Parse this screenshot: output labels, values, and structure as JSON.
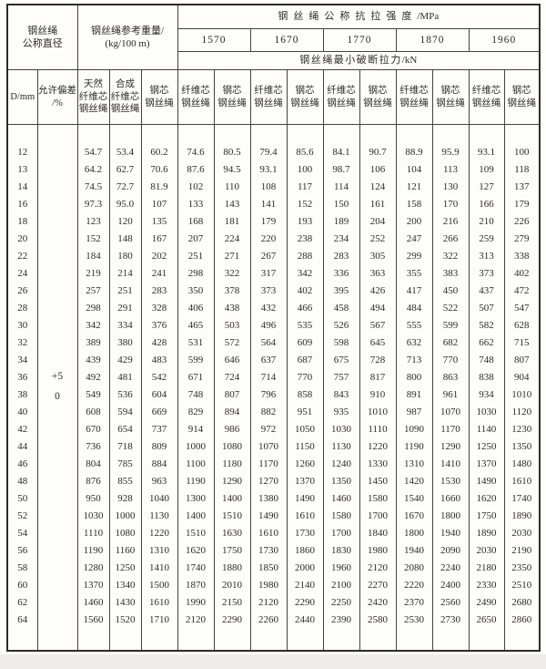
{
  "table": {
    "header": {
      "diameter_title_line1": "钢丝绳",
      "diameter_title_line2": "公称直径",
      "weight_title_line1": "钢丝绳参考重量/",
      "weight_title_line2": "(kg/100 m)",
      "strength_title_cn": "钢丝绳公称抗拉强度",
      "strength_title_unit": "/MPa",
      "strength_grades": [
        "1570",
        "1670",
        "1770",
        "1870",
        "1960"
      ],
      "breaking_force_cn": "钢丝绳最小破断拉力",
      "breaking_force_unit": "/kN",
      "subheader_columns": [
        {
          "id": "diameter",
          "lines": [
            "D/mm"
          ]
        },
        {
          "id": "tolerance",
          "lines": [
            "允许偏差",
            "/%"
          ]
        },
        {
          "id": "natural-fiber-core-rope",
          "lines": [
            "天然",
            "纤维芯",
            "钢丝绳"
          ]
        },
        {
          "id": "synthetic-fiber-core-rope",
          "lines": [
            "合成",
            "纤维芯",
            "钢丝绳"
          ]
        },
        {
          "id": "steel-core-rope",
          "lines": [
            "钢芯",
            "钢丝绳"
          ]
        },
        {
          "id": "fiber-core-rope-1570",
          "lines": [
            "纤维芯",
            "钢丝绳"
          ]
        },
        {
          "id": "steel-core-rope-1570",
          "lines": [
            "钢芯",
            "钢丝绳"
          ]
        },
        {
          "id": "fiber-core-rope-1670",
          "lines": [
            "纤维芯",
            "钢丝绳"
          ]
        },
        {
          "id": "steel-core-rope-1670",
          "lines": [
            "钢芯",
            "钢丝绳"
          ]
        },
        {
          "id": "fiber-core-rope-1770",
          "lines": [
            "纤维芯",
            "钢丝绳"
          ]
        },
        {
          "id": "steel-core-rope-1770",
          "lines": [
            "钢芯",
            "钢丝绳"
          ]
        },
        {
          "id": "fiber-core-rope-1870",
          "lines": [
            "纤维芯",
            "钢丝绳"
          ]
        },
        {
          "id": "steel-core-rope-1870",
          "lines": [
            "钢芯",
            "钢丝绳"
          ]
        },
        {
          "id": "fiber-core-rope-1960",
          "lines": [
            "纤维芯",
            "钢丝绳"
          ]
        },
        {
          "id": "steel-core-rope-1960",
          "lines": [
            "钢芯",
            "钢丝绳"
          ]
        }
      ]
    },
    "tolerance_plus": "+5",
    "tolerance_zero": "0",
    "rows": [
      {
        "d": "12",
        "values": [
          "54.7",
          "53.4",
          "60.2",
          "74.6",
          "80.5",
          "79.4",
          "85.6",
          "84.1",
          "90.7",
          "88.9",
          "95.9",
          "93.1",
          "100"
        ]
      },
      {
        "d": "13",
        "values": [
          "64.2",
          "62.7",
          "70.6",
          "87.6",
          "94.5",
          "93.1",
          "100",
          "98.7",
          "106",
          "104",
          "113",
          "109",
          "118"
        ]
      },
      {
        "d": "14",
        "values": [
          "74.5",
          "72.7",
          "81.9",
          "102",
          "110",
          "108",
          "117",
          "114",
          "124",
          "121",
          "130",
          "127",
          "137"
        ]
      },
      {
        "d": "16",
        "values": [
          "97.3",
          "95.0",
          "107",
          "133",
          "143",
          "141",
          "152",
          "150",
          "161",
          "158",
          "170",
          "166",
          "179"
        ]
      },
      {
        "d": "18",
        "values": [
          "123",
          "120",
          "135",
          "168",
          "181",
          "179",
          "193",
          "189",
          "204",
          "200",
          "216",
          "210",
          "226"
        ]
      },
      {
        "d": "20",
        "values": [
          "152",
          "148",
          "167",
          "207",
          "224",
          "220",
          "238",
          "234",
          "252",
          "247",
          "266",
          "259",
          "279"
        ]
      },
      {
        "d": "22",
        "values": [
          "184",
          "180",
          "202",
          "251",
          "271",
          "267",
          "288",
          "283",
          "305",
          "299",
          "322",
          "313",
          "338"
        ]
      },
      {
        "d": "24",
        "values": [
          "219",
          "214",
          "241",
          "298",
          "322",
          "317",
          "342",
          "336",
          "363",
          "355",
          "383",
          "373",
          "402"
        ]
      },
      {
        "d": "26",
        "values": [
          "257",
          "251",
          "283",
          "350",
          "378",
          "373",
          "402",
          "395",
          "426",
          "417",
          "450",
          "437",
          "472"
        ]
      },
      {
        "d": "28",
        "values": [
          "298",
          "291",
          "328",
          "406",
          "438",
          "432",
          "466",
          "458",
          "494",
          "484",
          "522",
          "507",
          "547"
        ]
      },
      {
        "d": "30",
        "values": [
          "342",
          "334",
          "376",
          "465",
          "503",
          "496",
          "535",
          "526",
          "567",
          "555",
          "599",
          "582",
          "628"
        ]
      },
      {
        "d": "32",
        "values": [
          "389",
          "380",
          "428",
          "531",
          "572",
          "564",
          "609",
          "598",
          "645",
          "632",
          "682",
          "662",
          "715"
        ]
      },
      {
        "d": "34",
        "values": [
          "439",
          "429",
          "483",
          "599",
          "646",
          "637",
          "687",
          "675",
          "728",
          "713",
          "770",
          "748",
          "807"
        ]
      },
      {
        "d": "36",
        "values": [
          "492",
          "481",
          "542",
          "671",
          "724",
          "714",
          "770",
          "757",
          "817",
          "800",
          "863",
          "838",
          "904"
        ]
      },
      {
        "d": "38",
        "values": [
          "549",
          "536",
          "604",
          "748",
          "807",
          "796",
          "858",
          "843",
          "910",
          "891",
          "961",
          "934",
          "1010"
        ]
      },
      {
        "d": "40",
        "values": [
          "608",
          "594",
          "669",
          "829",
          "894",
          "882",
          "951",
          "935",
          "1010",
          "987",
          "1070",
          "1030",
          "1120"
        ]
      },
      {
        "d": "42",
        "values": [
          "670",
          "654",
          "737",
          "914",
          "986",
          "972",
          "1050",
          "1030",
          "1110",
          "1090",
          "1170",
          "1140",
          "1230"
        ]
      },
      {
        "d": "44",
        "values": [
          "736",
          "718",
          "809",
          "1000",
          "1080",
          "1070",
          "1150",
          "1130",
          "1220",
          "1190",
          "1290",
          "1250",
          "1350"
        ]
      },
      {
        "d": "46",
        "values": [
          "804",
          "785",
          "884",
          "1100",
          "1180",
          "1170",
          "1260",
          "1240",
          "1330",
          "1310",
          "1410",
          "1370",
          "1480"
        ]
      },
      {
        "d": "48",
        "values": [
          "876",
          "855",
          "963",
          "1190",
          "1290",
          "1270",
          "1370",
          "1350",
          "1450",
          "1420",
          "1530",
          "1490",
          "1610"
        ]
      },
      {
        "d": "50",
        "values": [
          "950",
          "928",
          "1040",
          "1300",
          "1400",
          "1380",
          "1490",
          "1460",
          "1580",
          "1540",
          "1660",
          "1620",
          "1740"
        ]
      },
      {
        "d": "52",
        "values": [
          "1030",
          "1000",
          "1130",
          "1400",
          "1510",
          "1490",
          "1610",
          "1580",
          "1700",
          "1670",
          "1800",
          "1750",
          "1890"
        ]
      },
      {
        "d": "54",
        "values": [
          "1110",
          "1080",
          "1220",
          "1510",
          "1630",
          "1610",
          "1730",
          "1700",
          "1840",
          "1800",
          "1940",
          "1890",
          "2030"
        ]
      },
      {
        "d": "56",
        "values": [
          "1190",
          "1160",
          "1310",
          "1620",
          "1750",
          "1730",
          "1860",
          "1830",
          "1980",
          "1940",
          "2090",
          "2030",
          "2190"
        ]
      },
      {
        "d": "58",
        "values": [
          "1280",
          "1250",
          "1410",
          "1740",
          "1880",
          "1850",
          "2000",
          "1960",
          "2120",
          "2080",
          "2240",
          "2180",
          "2350"
        ]
      },
      {
        "d": "60",
        "values": [
          "1370",
          "1340",
          "1500",
          "1870",
          "2010",
          "1980",
          "2140",
          "2100",
          "2270",
          "2220",
          "2400",
          "2330",
          "2510"
        ]
      },
      {
        "d": "62",
        "values": [
          "1460",
          "1430",
          "1610",
          "1990",
          "2150",
          "2120",
          "2290",
          "2250",
          "2420",
          "2370",
          "2560",
          "2490",
          "2680"
        ]
      },
      {
        "d": "64",
        "values": [
          "1560",
          "1520",
          "1710",
          "2120",
          "2290",
          "2260",
          "2440",
          "2390",
          "2580",
          "2530",
          "2730",
          "2650",
          "2860"
        ]
      }
    ]
  }
}
